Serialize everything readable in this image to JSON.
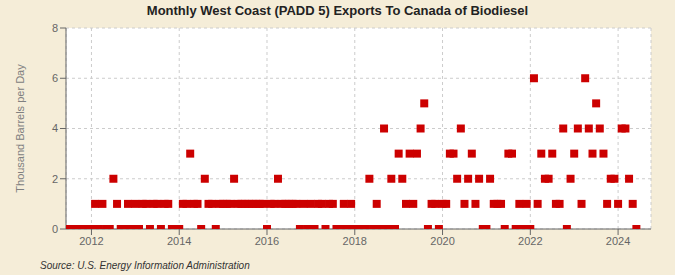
{
  "chart_data": {
    "type": "scatter",
    "title": "Monthly West Coast (PADD 5) Exports To Canada of Biodiesel",
    "y_label": "Thousand Barrels per Day",
    "annotations": [
      "Source: U.S. Energy Information Administration"
    ],
    "color": "#CC0000",
    "marker": "square",
    "grid": true,
    "xlim": [
      2011.42,
      2024.75
    ],
    "xticks": [
      2012,
      2014,
      2016,
      2018,
      2020,
      2022,
      2024
    ],
    "ylim": [
      0,
      8
    ],
    "yticks": [
      0,
      2,
      4,
      6,
      8
    ],
    "x": [
      2011.5,
      2011.583,
      2011.667,
      2011.75,
      2011.833,
      2011.917,
      2012.0,
      2012.083,
      2012.167,
      2012.25,
      2012.333,
      2012.417,
      2012.5,
      2012.583,
      2012.667,
      2012.75,
      2012.833,
      2012.917,
      2013.0,
      2013.083,
      2013.167,
      2013.25,
      2013.333,
      2013.417,
      2013.5,
      2013.583,
      2013.667,
      2013.75,
      2013.833,
      2013.917,
      2014.0,
      2014.083,
      2014.167,
      2014.25,
      2014.333,
      2014.417,
      2014.5,
      2014.583,
      2014.667,
      2014.75,
      2014.833,
      2014.917,
      2015.0,
      2015.083,
      2015.167,
      2015.25,
      2015.333,
      2015.417,
      2015.5,
      2015.583,
      2015.667,
      2015.75,
      2015.833,
      2015.917,
      2016.0,
      2016.083,
      2016.167,
      2016.25,
      2016.333,
      2016.417,
      2016.5,
      2016.583,
      2016.667,
      2016.75,
      2016.833,
      2016.917,
      2017.0,
      2017.083,
      2017.167,
      2017.25,
      2017.333,
      2017.417,
      2017.5,
      2017.583,
      2017.667,
      2017.75,
      2017.833,
      2017.917,
      2018.0,
      2018.083,
      2018.167,
      2018.25,
      2018.333,
      2018.417,
      2018.5,
      2018.583,
      2018.667,
      2018.75,
      2018.833,
      2018.917,
      2019.0,
      2019.083,
      2019.167,
      2019.25,
      2019.333,
      2019.417,
      2019.5,
      2019.583,
      2019.667,
      2019.75,
      2019.833,
      2019.917,
      2020.0,
      2020.083,
      2020.167,
      2020.25,
      2020.333,
      2020.417,
      2020.5,
      2020.583,
      2020.667,
      2020.75,
      2020.833,
      2020.917,
      2021.0,
      2021.083,
      2021.167,
      2021.25,
      2021.333,
      2021.417,
      2021.5,
      2021.583,
      2021.667,
      2021.75,
      2021.833,
      2021.917,
      2022.0,
      2022.083,
      2022.167,
      2022.25,
      2022.333,
      2022.417,
      2022.5,
      2022.583,
      2022.667,
      2022.75,
      2022.833,
      2022.917,
      2023.0,
      2023.083,
      2023.167,
      2023.25,
      2023.333,
      2023.417,
      2023.5,
      2023.583,
      2023.667,
      2023.75,
      2023.833,
      2023.917,
      2024.0,
      2024.083,
      2024.167,
      2024.25,
      2024.333,
      2024.417
    ],
    "values": [
      0,
      0,
      0,
      0,
      0,
      0,
      0,
      1,
      0,
      1,
      0,
      0,
      2,
      1,
      0,
      0,
      1,
      0,
      1,
      0,
      1,
      1,
      0,
      1,
      1,
      0,
      1,
      1,
      0,
      0,
      0,
      1,
      1,
      3,
      1,
      1,
      0,
      2,
      1,
      1,
      0,
      1,
      1,
      1,
      1,
      2,
      1,
      1,
      1,
      1,
      1,
      1,
      1,
      1,
      0,
      1,
      1,
      2,
      1,
      1,
      1,
      1,
      1,
      0,
      1,
      0,
      1,
      0,
      1,
      1,
      0,
      1,
      1,
      0,
      0,
      1,
      0,
      1,
      0,
      0,
      0,
      0,
      2,
      0,
      1,
      0,
      4,
      0,
      2,
      0,
      3,
      2,
      1,
      3,
      1,
      3,
      4,
      5,
      0,
      1,
      1,
      0,
      1,
      1,
      3,
      3,
      2,
      4,
      1,
      2,
      3,
      1,
      2,
      0,
      0,
      2,
      1,
      1,
      1,
      0,
      3,
      3,
      0,
      1,
      0,
      1,
      0,
      6,
      1,
      3,
      2,
      2,
      3,
      1,
      1,
      4,
      0,
      2,
      3,
      4,
      1,
      6,
      4,
      3,
      5,
      4,
      3,
      1,
      2,
      2,
      1,
      4,
      4,
      2,
      1,
      0
    ]
  }
}
